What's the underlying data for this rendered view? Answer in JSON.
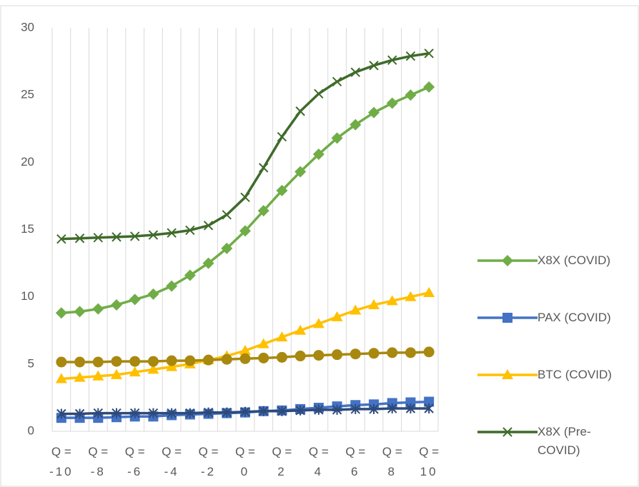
{
  "chart_data": {
    "type": "line",
    "categories": [
      "Q = -10",
      null,
      "Q = -8",
      null,
      "Q = -6",
      null,
      "Q = -4",
      null,
      "Q = -2",
      null,
      "Q = 0",
      null,
      "Q = 2",
      null,
      "Q = 4",
      null,
      "Q = 6",
      null,
      "Q = 8",
      null,
      "Q = 10"
    ],
    "ylim": [
      0,
      30
    ],
    "yticks": [
      0,
      5,
      10,
      15,
      20,
      25,
      30
    ],
    "xgrid": true,
    "legend": "right",
    "series": [
      {
        "name": "X8X (COVID)",
        "color": "#70ad47",
        "marker": "diamond",
        "values": [
          8.8,
          8.9,
          9.1,
          9.4,
          9.8,
          10.2,
          10.8,
          11.6,
          12.5,
          13.6,
          14.9,
          16.4,
          17.9,
          19.3,
          20.6,
          21.8,
          22.8,
          23.7,
          24.4,
          25.0,
          25.6
        ]
      },
      {
        "name": "PAX (COVID)",
        "color": "#4472c4",
        "marker": "square",
        "values": [
          1.0,
          1.0,
          1.0,
          1.05,
          1.1,
          1.1,
          1.2,
          1.25,
          1.3,
          1.35,
          1.4,
          1.5,
          1.55,
          1.65,
          1.75,
          1.85,
          1.95,
          2.0,
          2.1,
          2.15,
          2.2
        ]
      },
      {
        "name": "BTC (COVID)",
        "color": "#ffc000",
        "marker": "triangle",
        "values": [
          3.9,
          4.0,
          4.1,
          4.2,
          4.4,
          4.6,
          4.8,
          5.0,
          5.3,
          5.6,
          6.0,
          6.5,
          7.0,
          7.5,
          8.0,
          8.5,
          9.0,
          9.4,
          9.7,
          10.0,
          10.3
        ]
      },
      {
        "name": "X8X (Pre-COVID)",
        "color": "#3f6b2a",
        "marker": "x",
        "values": [
          14.3,
          14.35,
          14.4,
          14.45,
          14.5,
          14.6,
          14.75,
          14.95,
          15.3,
          16.1,
          17.4,
          19.6,
          21.9,
          23.8,
          25.1,
          26.0,
          26.7,
          27.2,
          27.6,
          27.9,
          28.1
        ]
      },
      {
        "color": "#a8880f",
        "marker": "circle",
        "values": [
          5.15,
          5.15,
          5.15,
          5.2,
          5.2,
          5.2,
          5.25,
          5.25,
          5.3,
          5.35,
          5.4,
          5.45,
          5.5,
          5.6,
          5.65,
          5.7,
          5.75,
          5.8,
          5.85,
          5.85,
          5.9
        ]
      },
      {
        "color": "#2e4a7a",
        "marker": "star",
        "values": [
          1.3,
          1.3,
          1.35,
          1.35,
          1.35,
          1.35,
          1.35,
          1.35,
          1.4,
          1.4,
          1.45,
          1.5,
          1.5,
          1.55,
          1.6,
          1.6,
          1.65,
          1.65,
          1.7,
          1.7,
          1.7
        ]
      }
    ]
  }
}
